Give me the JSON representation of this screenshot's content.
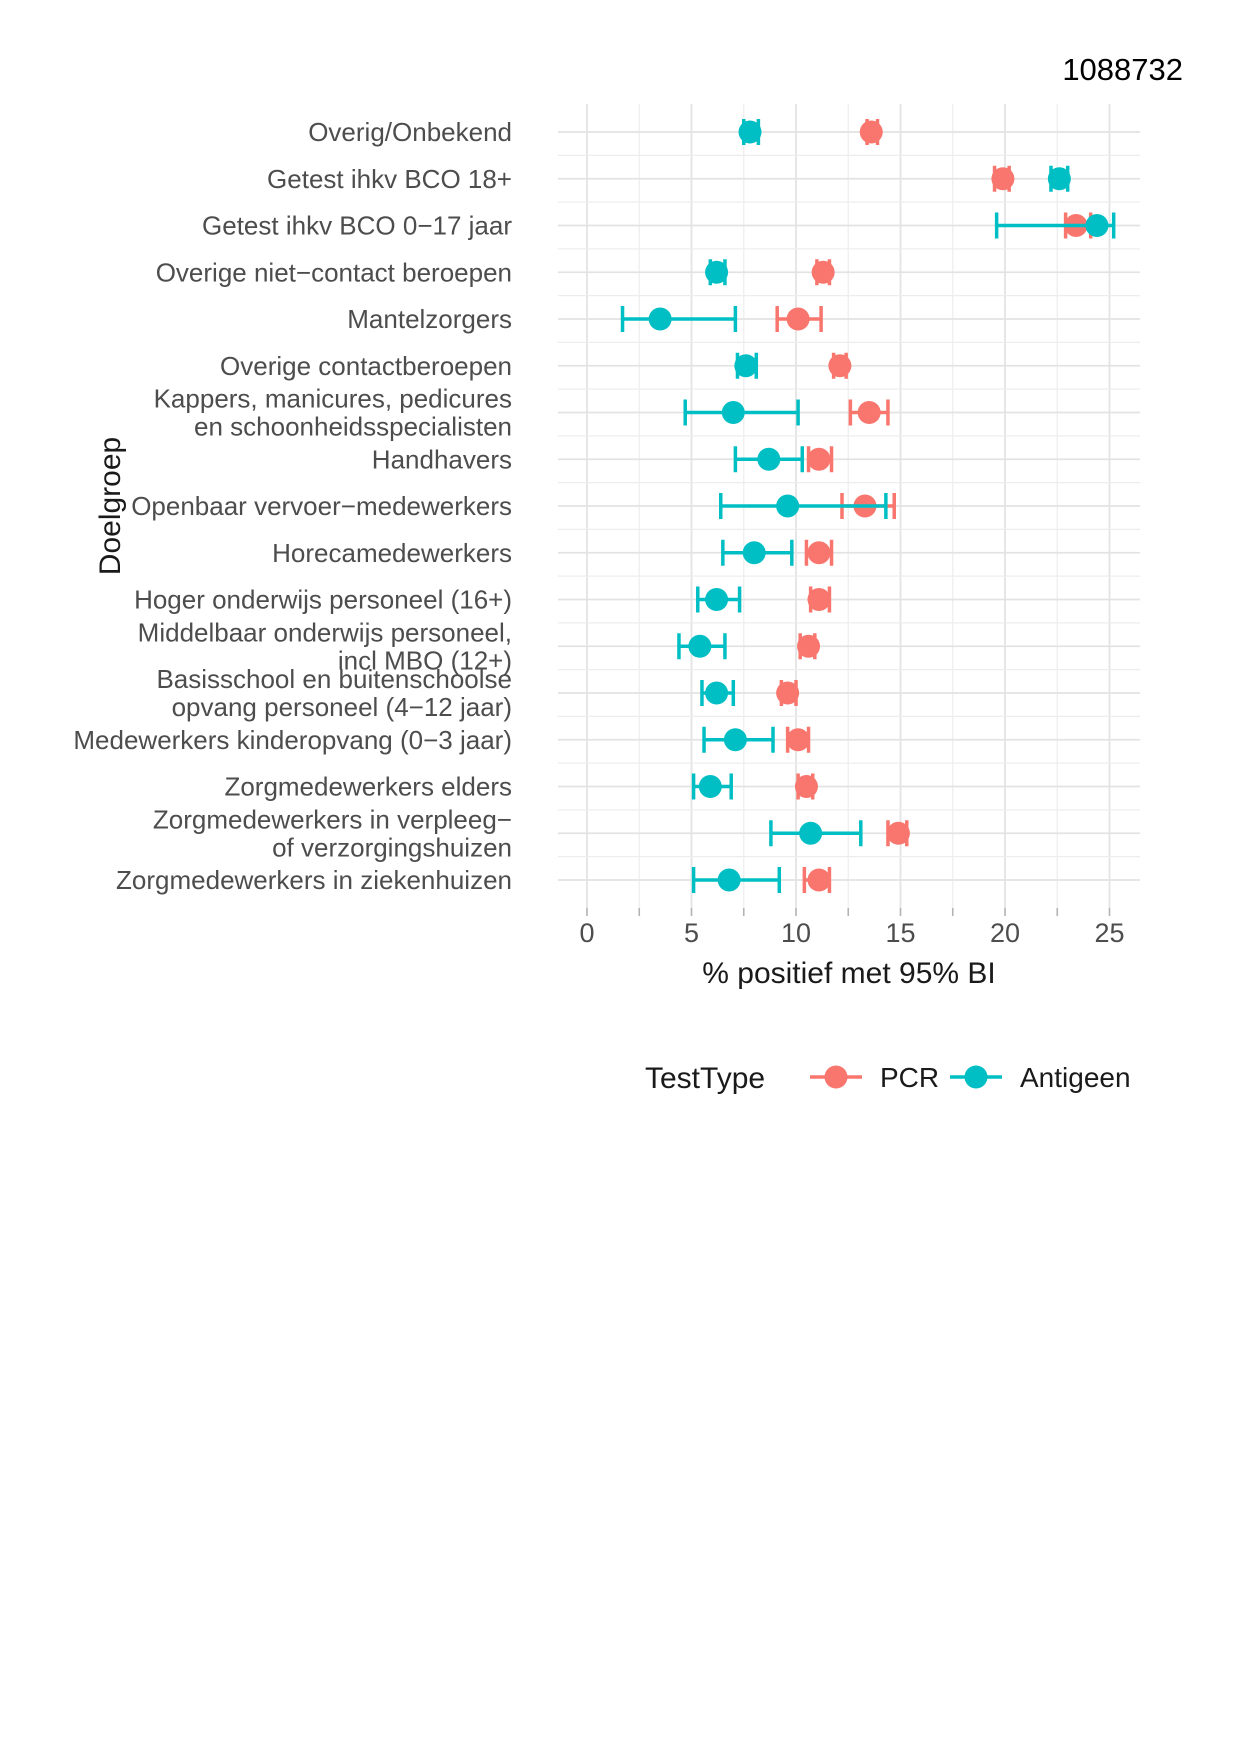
{
  "document_number": "1088732",
  "chart_data": {
    "type": "scatter",
    "error_bars": true,
    "title": "",
    "xlabel": "% positief met 95% BI",
    "ylabel": "Doelgroep",
    "legend_title": "TestType",
    "legend_position": "bottom",
    "grid": "on",
    "x_ticks": [
      0,
      5,
      10,
      15,
      20,
      25
    ],
    "x_minor_step": 2.5,
    "xlim": [
      -1.5,
      27
    ],
    "series_names": [
      "PCR",
      "Antigeen"
    ],
    "colors": {
      "pcr": "#F8766D",
      "antigeen": "#00BFC4",
      "grid_major": "#E3E3E3",
      "grid_minor": "#EDEDED",
      "tick_mark": "#B3B3B3",
      "label_text": "#4D4D4D"
    },
    "categories": [
      {
        "label": [
          "Overig/Onbekend"
        ],
        "pcr": {
          "value": 13.6,
          "lo": 13.4,
          "hi": 13.9
        },
        "antigeen": {
          "value": 7.8,
          "lo": 7.5,
          "hi": 8.2
        }
      },
      {
        "label": [
          "Getest ihkv BCO 18+"
        ],
        "pcr": {
          "value": 19.9,
          "lo": 19.5,
          "hi": 20.2
        },
        "antigeen": {
          "value": 22.6,
          "lo": 22.2,
          "hi": 23.0
        }
      },
      {
        "label": [
          "Getest ihkv BCO 0−17 jaar"
        ],
        "pcr": {
          "value": 23.4,
          "lo": 22.9,
          "hi": 24.1
        },
        "antigeen": {
          "value": 24.4,
          "lo": 19.6,
          "hi": 25.2
        }
      },
      {
        "label": [
          "Overige niet−contact beroepen"
        ],
        "pcr": {
          "value": 11.3,
          "lo": 11.0,
          "hi": 11.6
        },
        "antigeen": {
          "value": 6.2,
          "lo": 5.9,
          "hi": 6.6
        }
      },
      {
        "label": [
          "Mantelzorgers"
        ],
        "pcr": {
          "value": 10.1,
          "lo": 9.1,
          "hi": 11.2
        },
        "antigeen": {
          "value": 3.5,
          "lo": 1.7,
          "hi": 7.1
        }
      },
      {
        "label": [
          "Overige contactberoepen"
        ],
        "pcr": {
          "value": 12.1,
          "lo": 11.8,
          "hi": 12.4
        },
        "antigeen": {
          "value": 7.6,
          "lo": 7.2,
          "hi": 8.1
        }
      },
      {
        "label": [
          "Kappers, manicures, pedicures",
          "en schoonheidsspecialisten"
        ],
        "pcr": {
          "value": 13.5,
          "lo": 12.6,
          "hi": 14.4
        },
        "antigeen": {
          "value": 7.0,
          "lo": 4.7,
          "hi": 10.1
        }
      },
      {
        "label": [
          "Handhavers"
        ],
        "pcr": {
          "value": 11.1,
          "lo": 10.6,
          "hi": 11.7
        },
        "antigeen": {
          "value": 8.7,
          "lo": 7.1,
          "hi": 10.3
        }
      },
      {
        "label": [
          "Openbaar vervoer−medewerkers"
        ],
        "pcr": {
          "value": 13.3,
          "lo": 12.2,
          "hi": 14.7
        },
        "antigeen": {
          "value": 9.6,
          "lo": 6.4,
          "hi": 14.3
        }
      },
      {
        "label": [
          "Horecamedewerkers"
        ],
        "pcr": {
          "value": 11.1,
          "lo": 10.5,
          "hi": 11.7
        },
        "antigeen": {
          "value": 8.0,
          "lo": 6.5,
          "hi": 9.8
        }
      },
      {
        "label": [
          "Hoger onderwijs personeel (16+)"
        ],
        "pcr": {
          "value": 11.1,
          "lo": 10.7,
          "hi": 11.6
        },
        "antigeen": {
          "value": 6.2,
          "lo": 5.3,
          "hi": 7.3
        }
      },
      {
        "label": [
          "Middelbaar onderwijs personeel,",
          "incl MBO (12+)"
        ],
        "pcr": {
          "value": 10.6,
          "lo": 10.2,
          "hi": 10.9
        },
        "antigeen": {
          "value": 5.4,
          "lo": 4.4,
          "hi": 6.6
        }
      },
      {
        "label": [
          "Basisschool en buitenschoolse",
          "opvang personeel (4−12 jaar)"
        ],
        "pcr": {
          "value": 9.6,
          "lo": 9.3,
          "hi": 10.0
        },
        "antigeen": {
          "value": 6.2,
          "lo": 5.5,
          "hi": 7.0
        }
      },
      {
        "label": [
          "Medewerkers kinderopvang (0−3 jaar)"
        ],
        "pcr": {
          "value": 10.1,
          "lo": 9.6,
          "hi": 10.6
        },
        "antigeen": {
          "value": 7.1,
          "lo": 5.6,
          "hi": 8.9
        }
      },
      {
        "label": [
          "Zorgmedewerkers elders"
        ],
        "pcr": {
          "value": 10.5,
          "lo": 10.1,
          "hi": 10.8
        },
        "antigeen": {
          "value": 5.9,
          "lo": 5.1,
          "hi": 6.9
        }
      },
      {
        "label": [
          "Zorgmedewerkers in verpleeg−",
          "of verzorgingshuizen"
        ],
        "pcr": {
          "value": 14.9,
          "lo": 14.4,
          "hi": 15.3
        },
        "antigeen": {
          "value": 10.7,
          "lo": 8.8,
          "hi": 13.1
        }
      },
      {
        "label": [
          "Zorgmedewerkers in ziekenhuizen"
        ],
        "pcr": {
          "value": 11.1,
          "lo": 10.4,
          "hi": 11.6
        },
        "antigeen": {
          "value": 6.8,
          "lo": 5.1,
          "hi": 9.2
        }
      }
    ]
  }
}
